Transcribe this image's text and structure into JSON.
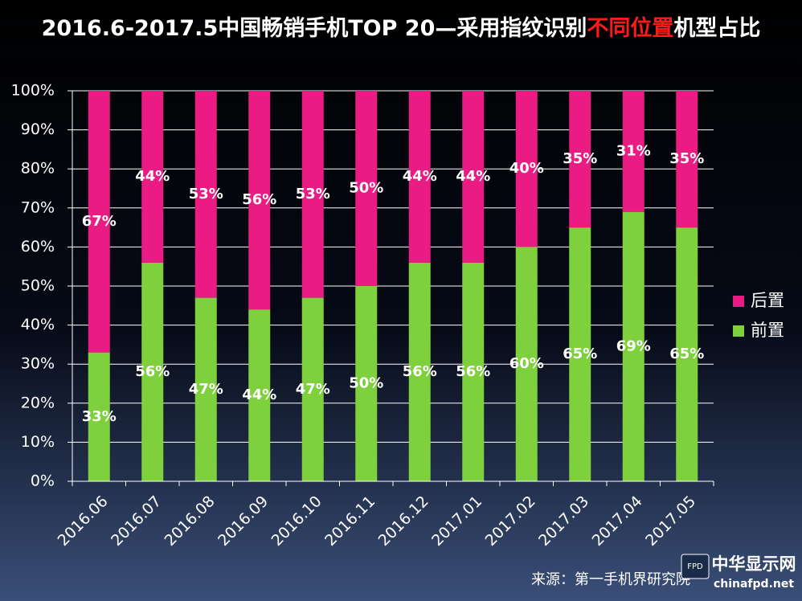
{
  "chart_data": {
    "type": "stacked_bar",
    "title_parts": [
      "2016.6-2017.5中国畅销手机TOP 20—采用指纹识别",
      "不同位置",
      "机型占比"
    ],
    "title_highlight_color": "#ff1a1a",
    "categories": [
      "2016.06",
      "2016.07",
      "2016.08",
      "2016.09",
      "2016.10",
      "2016.11",
      "2016.12",
      "2017.01",
      "2017.02",
      "2017.03",
      "2017.04",
      "2017.05"
    ],
    "series": [
      {
        "name": "前置",
        "color": "#7ed03c",
        "values": [
          33,
          56,
          47,
          44,
          47,
          50,
          56,
          56,
          60,
          65,
          69,
          65
        ],
        "value_labels": [
          "33%",
          "56%",
          "47%",
          "44%",
          "47%",
          "50%",
          "56%",
          "56%",
          "60%",
          "65%",
          "69%",
          "65%"
        ]
      },
      {
        "name": "后置",
        "color": "#ea1b82",
        "values": [
          67,
          44,
          53,
          56,
          53,
          50,
          44,
          44,
          40,
          35,
          31,
          35
        ],
        "value_labels": [
          "67%",
          "44%",
          "53%",
          "56%",
          "53%",
          "50%",
          "44%",
          "44%",
          "40%",
          "35%",
          "31%",
          "35%"
        ]
      }
    ],
    "ylim": [
      0,
      100
    ],
    "yticks": [
      {
        "value": 0,
        "label": "0%"
      },
      {
        "value": 10,
        "label": "10%"
      },
      {
        "value": 20,
        "label": "20%"
      },
      {
        "value": 30,
        "label": "30%"
      },
      {
        "value": 40,
        "label": "40%"
      },
      {
        "value": 50,
        "label": "50%"
      },
      {
        "value": 60,
        "label": "60%"
      },
      {
        "value": 70,
        "label": "70%"
      },
      {
        "value": 80,
        "label": "80%"
      },
      {
        "value": 90,
        "label": "90%"
      },
      {
        "value": 100,
        "label": "100%"
      }
    ],
    "grid": true,
    "legend": "right",
    "source": "来源：第一手机界研究院",
    "watermark": {
      "badge": "FPD",
      "name": "中华显示网",
      "url": "chinafpd.net"
    }
  }
}
